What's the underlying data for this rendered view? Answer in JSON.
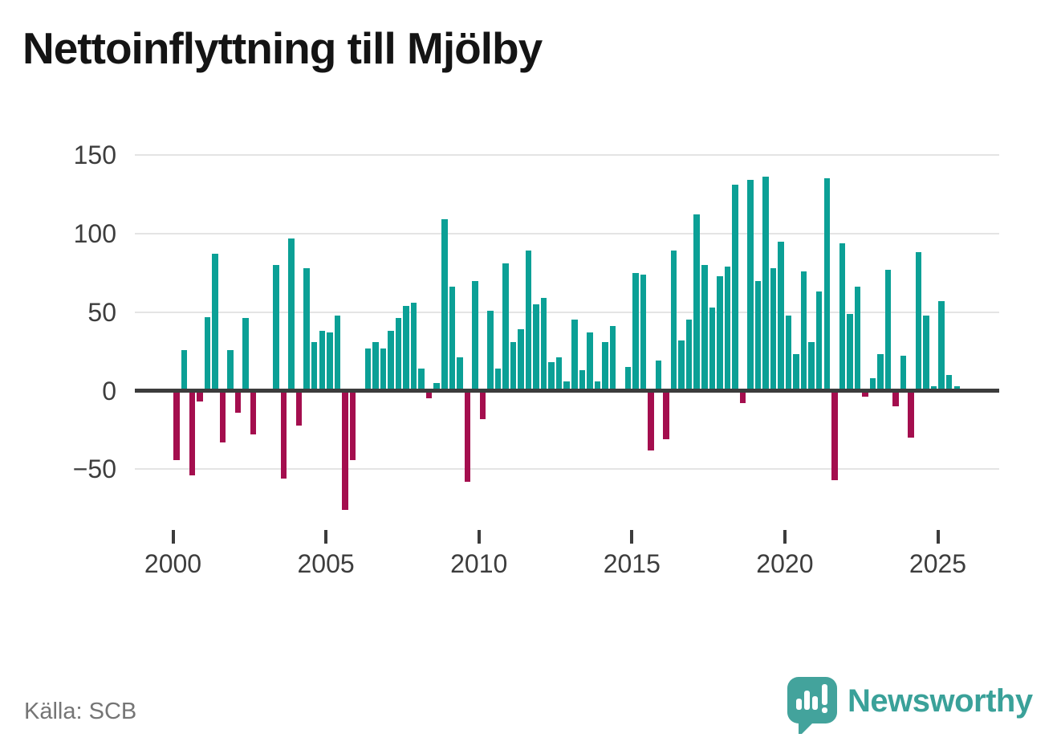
{
  "title": "Nettoinflyttning till Mjölby",
  "source": "Källa: SCB",
  "branding": {
    "logo_text": "Newsworthy",
    "logo_icon": "speech-bubble-with-bar-chart-and-exclamation"
  },
  "colors": {
    "positive_bar": "#0ba096",
    "negative_bar": "#a40e4e",
    "axis": "#3c3c3c",
    "gridline": "#e4e4e4",
    "tick_label": "#3d3d3d",
    "source_text": "#757575",
    "brand_teal": "#3aa199"
  },
  "chart_data": {
    "type": "bar",
    "title": "Nettoinflyttning till Mjölby",
    "frequency": "quarterly",
    "start_period": "2000Q1",
    "end_period": "2025Q3",
    "xlabel": "",
    "ylabel": "",
    "grid": true,
    "y_axis": {
      "ticks": [
        150,
        100,
        50,
        0,
        -50
      ],
      "range": [
        -80,
        150
      ]
    },
    "x_axis": {
      "tick_labels": [
        "2000",
        "2005",
        "2010",
        "2015",
        "2020",
        "2025"
      ],
      "tick_quarter_indices": [
        0,
        20,
        40,
        60,
        80,
        100
      ]
    },
    "values": [
      -43,
      26,
      -53,
      -6,
      47,
      87,
      -32,
      26,
      -13,
      46,
      -27,
      0,
      0,
      80,
      -55,
      97,
      -21,
      78,
      31,
      38,
      37,
      48,
      -75,
      -43,
      0,
      27,
      31,
      27,
      38,
      46,
      54,
      56,
      14,
      -4,
      5,
      109,
      66,
      21,
      -57,
      70,
      -17,
      51,
      14,
      81,
      31,
      39,
      89,
      55,
      59,
      18,
      21,
      6,
      45,
      13,
      37,
      6,
      31,
      41,
      0,
      15,
      75,
      74,
      -37,
      19,
      -30,
      89,
      32,
      45,
      112,
      80,
      53,
      73,
      79,
      131,
      -7,
      134,
      70,
      136,
      78,
      95,
      48,
      23,
      76,
      31,
      63,
      135,
      -56,
      94,
      49,
      66,
      -3,
      8,
      23,
      77,
      -9,
      22,
      -29,
      88,
      48,
      3,
      57,
      10,
      3
    ]
  }
}
